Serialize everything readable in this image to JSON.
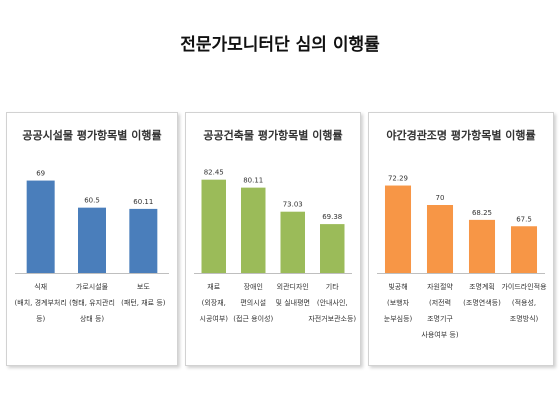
{
  "page_title": "전문가모니터단 심의 이행률",
  "chart_data": [
    {
      "type": "bar",
      "title": "공공시설물 평가항목별 이행률",
      "color": "#4a7ebb",
      "ylim": [
        40,
        72
      ],
      "grid": false,
      "categories": [
        [
          "식재",
          "(배치, 경계부처리",
          "등)"
        ],
        [
          "가로시설물",
          "(형태, 유지관리",
          "상태 등)"
        ],
        [
          "보도",
          "(패턴, 재료 등)"
        ]
      ],
      "values": [
        69,
        60.5,
        60.11
      ],
      "value_labels": [
        "69",
        "60.5",
        "60.11"
      ]
    },
    {
      "type": "bar",
      "title": "공공건축물 평가항목별 이행률",
      "color": "#9bbb59",
      "ylim": [
        55,
        85
      ],
      "grid": false,
      "categories": [
        [
          "재료",
          "(외장재,",
          "시공여부)"
        ],
        [
          "장애인",
          "편의시설",
          "(접근 용이성)"
        ],
        [
          "외관디자인",
          "및 실내평면"
        ],
        [
          "기타",
          "(안내사인,",
          "자전거보관소등)"
        ]
      ],
      "values": [
        82.45,
        80.11,
        73.03,
        69.38
      ],
      "value_labels": [
        "82.45",
        "80.11",
        "73.03",
        "69.38"
      ]
    },
    {
      "type": "bar",
      "title": "야간경관조명 평가항목별 이행률",
      "color": "#f79646",
      "ylim": [
        62,
        74
      ],
      "grid": false,
      "categories": [
        [
          "빛공해",
          "(보행자",
          "눈부심등)"
        ],
        [
          "자원절약",
          "(저전력",
          "조명기구",
          "사용여부 등)"
        ],
        [
          "조명계획",
          "(조명연색등)"
        ],
        [
          "가이드라인적용",
          "(적용성,",
          "조명방식)"
        ]
      ],
      "values": [
        72.29,
        70,
        68.25,
        67.5
      ],
      "value_labels": [
        "72.29",
        "70",
        "68.25",
        "67.5"
      ]
    }
  ]
}
